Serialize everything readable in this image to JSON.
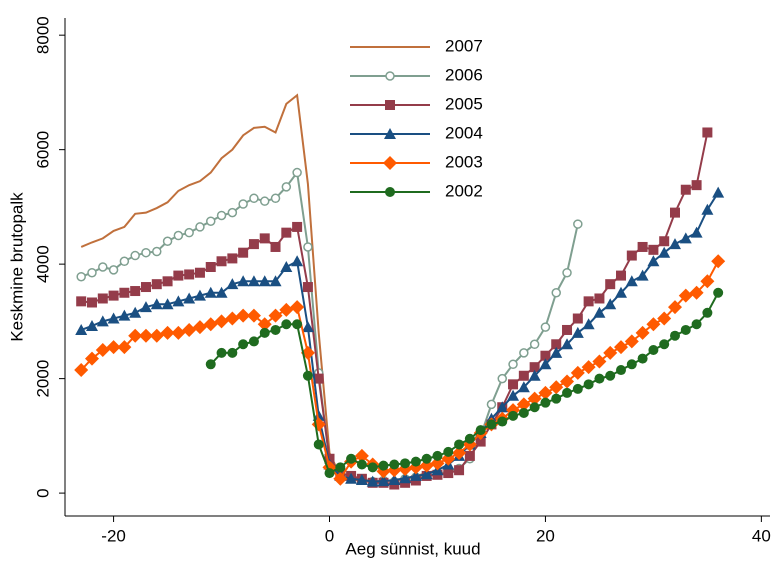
{
  "chart_data": {
    "type": "line",
    "x_label": "Aeg sünnist, kuud",
    "y_label": "Keskmine brutopalk",
    "xlim": [
      -24.5,
      40.8
    ],
    "ylim": [
      -400,
      8300
    ],
    "xticks": [
      -20,
      0,
      20,
      40
    ],
    "yticks": [
      0,
      2000,
      4000,
      6000,
      8000
    ],
    "legend": "top",
    "x": [
      -23,
      -22,
      -21,
      -20,
      -19,
      -18,
      -17,
      -16,
      -15,
      -14,
      -13,
      -12,
      -11,
      -10,
      -9,
      -8,
      -7,
      -6,
      -5,
      -4,
      -3,
      -2,
      -1,
      0,
      1,
      2,
      3,
      4,
      5,
      6,
      7,
      8,
      9,
      10,
      11,
      12,
      13,
      14,
      15,
      16,
      17,
      18,
      19,
      20,
      21,
      22,
      23,
      24,
      25,
      26,
      27,
      28,
      29,
      30,
      31,
      32,
      33,
      34,
      35,
      36
    ],
    "series": [
      {
        "name": "2007",
        "color": "#c0703c",
        "marker": "none",
        "values": [
          4300,
          4380,
          4450,
          4580,
          4650,
          4880,
          4900,
          4980,
          5080,
          5280,
          5380,
          5450,
          5600,
          5850,
          6000,
          6250,
          6380,
          6400,
          6300,
          6800,
          6950,
          5400,
          2800,
          700,
          300,
          250,
          200,
          200,
          220,
          200,
          250,
          300,
          350,
          400,
          null,
          null,
          null,
          null,
          null,
          null,
          null,
          null,
          null,
          null,
          null,
          null,
          null,
          null,
          null,
          null,
          null,
          null,
          null,
          null,
          null,
          null,
          null,
          null,
          null,
          null
        ]
      },
      {
        "name": "2006",
        "color": "#7f9f90",
        "marker": "circle-open",
        "values": [
          3780,
          3850,
          3950,
          3900,
          4050,
          4150,
          4200,
          4220,
          4400,
          4500,
          4550,
          4650,
          4750,
          4850,
          4900,
          5050,
          5150,
          5100,
          5150,
          5350,
          5600,
          4300,
          2100,
          550,
          350,
          280,
          250,
          200,
          220,
          200,
          250,
          280,
          300,
          330,
          380,
          430,
          600,
          1000,
          1550,
          2000,
          2250,
          2450,
          2600,
          2900,
          3500,
          3850,
          4700,
          null,
          null,
          null,
          null,
          null,
          null,
          null,
          null,
          null,
          null,
          null,
          null,
          null
        ]
      },
      {
        "name": "2005",
        "color": "#943c4a",
        "marker": "square",
        "values": [
          3350,
          3330,
          3400,
          3450,
          3500,
          3530,
          3600,
          3650,
          3700,
          3800,
          3820,
          3850,
          3950,
          4050,
          4100,
          4200,
          4350,
          4450,
          4300,
          4550,
          4650,
          3600,
          2000,
          600,
          350,
          300,
          250,
          180,
          180,
          150,
          180,
          220,
          300,
          320,
          350,
          400,
          650,
          900,
          1200,
          1500,
          1900,
          2050,
          2200,
          2400,
          2600,
          2850,
          3050,
          3350,
          3400,
          3650,
          3800,
          4150,
          4300,
          4250,
          4400,
          4900,
          5300,
          5380,
          6300,
          null
        ]
      },
      {
        "name": "2004",
        "color": "#1a4f82",
        "marker": "triangle",
        "values": [
          2850,
          2920,
          3000,
          3050,
          3100,
          3150,
          3250,
          3300,
          3300,
          3350,
          3400,
          3450,
          3500,
          3500,
          3650,
          3700,
          3700,
          3700,
          3700,
          3950,
          4050,
          2900,
          1350,
          500,
          300,
          250,
          230,
          200,
          210,
          230,
          260,
          300,
          330,
          400,
          500,
          650,
          850,
          1050,
          1300,
          1500,
          1700,
          1850,
          2050,
          2250,
          2450,
          2600,
          2800,
          2950,
          3150,
          3300,
          3500,
          3700,
          3800,
          4050,
          4200,
          4350,
          4450,
          4550,
          4950,
          5250
        ]
      },
      {
        "name": "2003",
        "color": "#ff5a00",
        "marker": "diamond",
        "values": [
          2150,
          2350,
          2500,
          2550,
          2550,
          2750,
          2750,
          2750,
          2800,
          2800,
          2850,
          2900,
          2950,
          3000,
          3050,
          3100,
          3100,
          2950,
          3100,
          3200,
          3250,
          2450,
          1200,
          450,
          250,
          550,
          650,
          500,
          380,
          400,
          420,
          450,
          480,
          520,
          600,
          700,
          850,
          1050,
          1200,
          1300,
          1450,
          1550,
          1650,
          1750,
          1850,
          1950,
          2100,
          2200,
          2300,
          2450,
          2550,
          2650,
          2800,
          2950,
          3050,
          3250,
          3450,
          3500,
          3700,
          4050
        ]
      },
      {
        "name": "2002",
        "color": "#1f6b1f",
        "marker": "circle",
        "values": [
          null,
          null,
          null,
          null,
          null,
          null,
          null,
          null,
          null,
          null,
          null,
          null,
          2250,
          2450,
          2450,
          2600,
          2650,
          2800,
          2850,
          2950,
          2950,
          2050,
          850,
          350,
          450,
          600,
          500,
          450,
          480,
          500,
          520,
          550,
          600,
          650,
          720,
          850,
          950,
          1100,
          1200,
          1250,
          1350,
          1400,
          1500,
          1580,
          1650,
          1750,
          1820,
          1900,
          2000,
          2050,
          2150,
          2250,
          2350,
          2500,
          2600,
          2750,
          2850,
          2950,
          3150,
          3500
        ]
      }
    ]
  }
}
